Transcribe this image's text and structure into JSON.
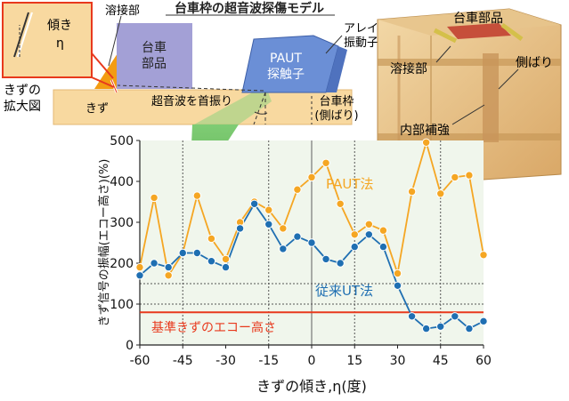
{
  "header": {
    "title": "台車枠の超音波探傷モデル"
  },
  "illustration": {
    "inset_title": "きずの拡大図",
    "inset_label_1": "傾き",
    "inset_label_2": "η",
    "weld_label": "溶接部",
    "part_label_1": "台車",
    "part_label_2": "部品",
    "probe_label_1": "PAUT",
    "probe_label_2": "探触子",
    "array_label_1": "アレイ",
    "array_label_2": "振動子",
    "flaw_label": "きず",
    "sweep_label": "超音波を首振り",
    "frame_label_1": "台車枠",
    "frame_label_2": "(側ばり)"
  },
  "model3d": {
    "part_label": "台車部品",
    "weld_label": "溶接部",
    "side_beam_label": "側ばり",
    "rib_label": "内部補強"
  },
  "colors": {
    "paut": "#F5A623",
    "conventional": "#1F6FB2",
    "reference": "#E8391D",
    "plot_bg": "#F0F6EC",
    "part": "#A3A0D6",
    "probe": "#6B8FD6",
    "frame": "#F8D9A0",
    "weld": "#F39C12",
    "beam": "#73C36A"
  },
  "chart_data": {
    "type": "line",
    "xlabel": "きずの傾き,η(度)",
    "ylabel": "きず信号の振幅(エコー高さ)(%)",
    "xlim": [
      -60,
      60
    ],
    "ylim": [
      0,
      500
    ],
    "xticks": [
      -60,
      -45,
      -30,
      -15,
      0,
      15,
      30,
      45,
      60
    ],
    "yticks": [
      0,
      100,
      200,
      300,
      400,
      500
    ],
    "grid": "dotted vertical at ±15/±45 and 0, horizontal at 100 and 150",
    "series": [
      {
        "name": "PAUT法",
        "x": [
          -60,
          -55,
          -50,
          -45,
          -40,
          -35,
          -30,
          -25,
          -20,
          -15,
          -10,
          -5,
          0,
          5,
          10,
          15,
          20,
          25,
          30,
          35,
          40,
          45,
          50,
          55,
          60
        ],
        "y": [
          190,
          360,
          170,
          225,
          365,
          260,
          210,
          300,
          350,
          330,
          285,
          380,
          410,
          445,
          345,
          270,
          295,
          280,
          175,
          375,
          495,
          370,
          410,
          415,
          220
        ]
      },
      {
        "name": "従来UT法",
        "x": [
          -60,
          -55,
          -50,
          -45,
          -40,
          -35,
          -30,
          -25,
          -20,
          -15,
          -10,
          -5,
          0,
          5,
          10,
          15,
          20,
          25,
          30,
          35,
          40,
          45,
          50,
          55,
          60
        ],
        "y": [
          170,
          200,
          190,
          225,
          225,
          205,
          190,
          285,
          345,
          295,
          235,
          265,
          250,
          210,
          200,
          240,
          270,
          240,
          145,
          70,
          40,
          45,
          70,
          40,
          58
        ]
      }
    ],
    "reference_line": {
      "label": "基準きずのエコー高さ",
      "y": 80
    },
    "series_labels": [
      "PAUT法",
      "従来UT法"
    ]
  }
}
